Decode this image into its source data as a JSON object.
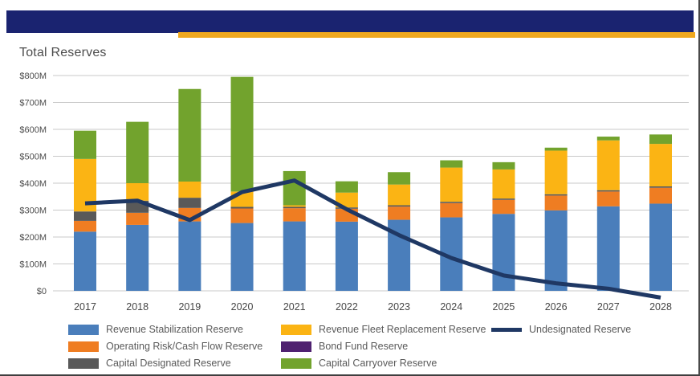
{
  "header": {
    "bar_color": "#1A2370",
    "stripe_color": "#F0A81E"
  },
  "chart_data": {
    "type": "bar",
    "subtype": "stacked-bar-with-line",
    "title": "Total Reserves",
    "categories": [
      "2017",
      "2018",
      "2019",
      "2020",
      "2021",
      "2022",
      "2023",
      "2024",
      "2025",
      "2026",
      "2027",
      "2028"
    ],
    "series": [
      {
        "name": "Revenue Stabilization Reserve",
        "color": "#4A7EBB",
        "values": [
          220,
          245,
          258,
          252,
          258,
          257,
          264,
          273,
          286,
          299,
          314,
          324
        ]
      },
      {
        "name": "Operating Risk/Cash Flow Reserve",
        "color": "#EF7D22",
        "values": [
          40,
          45,
          50,
          54,
          49,
          48,
          49,
          53,
          52,
          55,
          55,
          59
        ]
      },
      {
        "name": "Capital Designated Reserve",
        "color": "#595959",
        "values": [
          35,
          45,
          38,
          6,
          5,
          5,
          5,
          5,
          5,
          5,
          5,
          5
        ]
      },
      {
        "name": "Revenue Fleet Replacement Reserve",
        "color": "#FBB414",
        "values": [
          195,
          65,
          60,
          57,
          6,
          55,
          77,
          127,
          108,
          162,
          185,
          158
        ]
      },
      {
        "name": "Bond Fund Reserve",
        "color": "#4F2170",
        "values": [
          0,
          0,
          0,
          0,
          0,
          0,
          0,
          0,
          0,
          0,
          0,
          0
        ]
      },
      {
        "name": "Capital Carryover Reserve",
        "color": "#72A32D",
        "values": [
          105,
          228,
          344,
          426,
          127,
          42,
          46,
          27,
          27,
          11,
          14,
          35
        ]
      }
    ],
    "line_series": {
      "name": "Undesignated Reserve",
      "color": "#1F3864",
      "values": [
        325,
        335,
        263,
        367,
        410,
        303,
        207,
        122,
        57,
        28,
        8,
        -25
      ]
    },
    "xlabel": "",
    "ylabel": "",
    "ylim": [
      0,
      800
    ],
    "ytick_step": 100,
    "ytick_labels": [
      "$0",
      "$100M",
      "$200M",
      "$300M",
      "$400M",
      "$500M",
      "$600M",
      "$700M",
      "$800M"
    ],
    "grid": true,
    "legend_position": "bottom"
  }
}
